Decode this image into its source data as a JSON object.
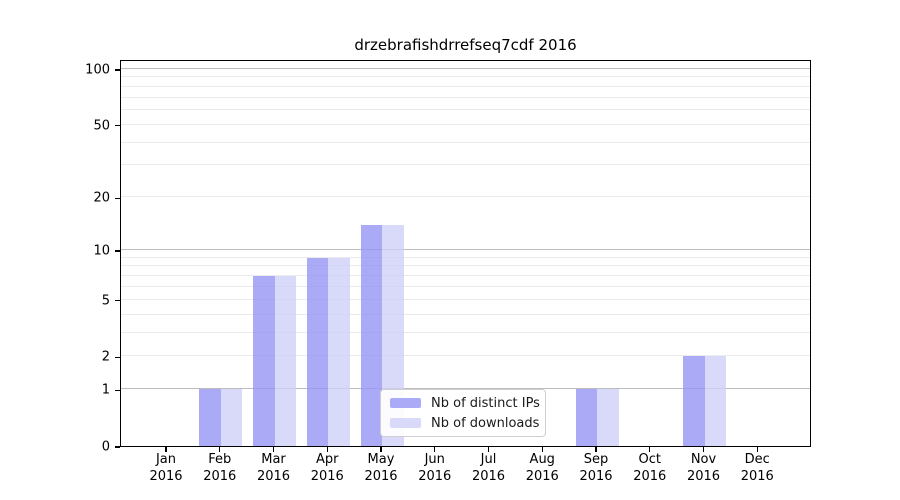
{
  "figure": {
    "title": "drzebrafishdrrefseq7cdf 2016"
  },
  "chart_data": {
    "type": "bar",
    "title": "drzebrafishdrrefseq7cdf 2016",
    "x_tick_months": [
      "Jan",
      "Feb",
      "Mar",
      "Apr",
      "May",
      "Jun",
      "Jul",
      "Aug",
      "Sep",
      "Oct",
      "Nov",
      "Dec"
    ],
    "x_tick_year": "2016",
    "series": [
      {
        "name": "Nb of distinct IPs",
        "color": "#aaaaf7",
        "fill": "rgba(149,149,245,0.8)",
        "values": [
          0,
          1,
          7,
          9,
          14,
          0,
          0,
          0,
          1,
          0,
          2,
          0
        ]
      },
      {
        "name": "Nb of downloads",
        "color": "#d9d9f9",
        "fill": "rgba(208,208,248,0.8)",
        "values": [
          0,
          1,
          7,
          9,
          14,
          0,
          0,
          0,
          1,
          0,
          2,
          0
        ]
      }
    ],
    "yscale": "log1p",
    "ylim": [
      0,
      113
    ],
    "yticks": [
      0,
      1,
      2,
      5,
      10,
      20,
      50,
      100
    ],
    "gridlines_major": [
      1,
      10,
      100
    ],
    "gridlines_minor": [
      2,
      3,
      4,
      5,
      6,
      7,
      8,
      9,
      20,
      30,
      40,
      50,
      60,
      70,
      80,
      90
    ],
    "grid": true,
    "legend_position": "lower center",
    "colors": {
      "grid_major": "#bcbcbc",
      "grid_minor": "#ebebee",
      "axis": "#000000",
      "background": "#ffffff"
    }
  }
}
